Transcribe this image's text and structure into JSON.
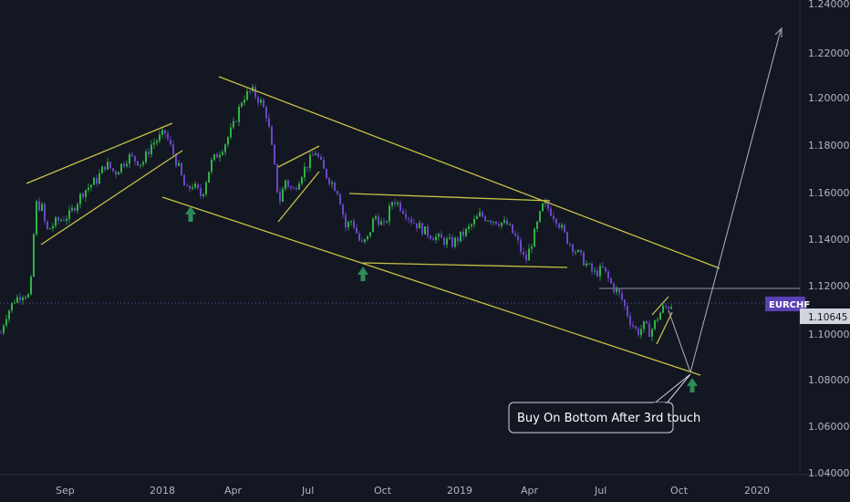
{
  "chart_data": {
    "type": "candlestick",
    "symbol": "EURCHF",
    "last_price": "1.10645",
    "y_ticks": [
      "1.24000",
      "1.22000",
      "1.20000",
      "1.18000",
      "1.16000",
      "1.14000",
      "1.12000",
      "1.10000",
      "1.08000",
      "1.06000",
      "1.04000"
    ],
    "ylim": [
      1.04,
      1.24
    ],
    "x_ticks": [
      "Sep",
      "2018",
      "Apr",
      "Jul",
      "Oct",
      "2019",
      "Apr",
      "Jul",
      "Oct",
      "2020"
    ],
    "price_path": [
      [
        0,
        1.1
      ],
      [
        5,
        1.107
      ],
      [
        15,
        1.114
      ],
      [
        25,
        1.117
      ],
      [
        32,
        1.115
      ],
      [
        38,
        1.155
      ],
      [
        45,
        1.153
      ],
      [
        50,
        1.143
      ],
      [
        60,
        1.147
      ],
      [
        75,
        1.15
      ],
      [
        90,
        1.16
      ],
      [
        105,
        1.165
      ],
      [
        115,
        1.172
      ],
      [
        125,
        1.168
      ],
      [
        140,
        1.175
      ],
      [
        155,
        1.172
      ],
      [
        165,
        1.18
      ],
      [
        180,
        1.185
      ],
      [
        195,
        1.17
      ],
      [
        203,
        1.16
      ],
      [
        210,
        1.163
      ],
      [
        220,
        1.158
      ],
      [
        230,
        1.172
      ],
      [
        245,
        1.18
      ],
      [
        255,
        1.188
      ],
      [
        265,
        1.2
      ],
      [
        275,
        1.203
      ],
      [
        285,
        1.198
      ],
      [
        292,
        1.192
      ],
      [
        300,
        1.17
      ],
      [
        305,
        1.155
      ],
      [
        312,
        1.165
      ],
      [
        320,
        1.16
      ],
      [
        330,
        1.168
      ],
      [
        345,
        1.177
      ],
      [
        355,
        1.168
      ],
      [
        370,
        1.16
      ],
      [
        378,
        1.145
      ],
      [
        385,
        1.148
      ],
      [
        395,
        1.137
      ],
      [
        402,
        1.14
      ],
      [
        410,
        1.15
      ],
      [
        420,
        1.145
      ],
      [
        430,
        1.157
      ],
      [
        440,
        1.153
      ],
      [
        450,
        1.148
      ],
      [
        465,
        1.143
      ],
      [
        480,
        1.14
      ],
      [
        495,
        1.138
      ],
      [
        510,
        1.143
      ],
      [
        525,
        1.15
      ],
      [
        540,
        1.148
      ],
      [
        555,
        1.146
      ],
      [
        565,
        1.14
      ],
      [
        575,
        1.13
      ],
      [
        585,
        1.142
      ],
      [
        595,
        1.155
      ],
      [
        602,
        1.152
      ],
      [
        610,
        1.148
      ],
      [
        620,
        1.14
      ],
      [
        630,
        1.135
      ],
      [
        640,
        1.13
      ],
      [
        650,
        1.125
      ],
      [
        660,
        1.127
      ],
      [
        670,
        1.12
      ],
      [
        680,
        1.115
      ],
      [
        690,
        1.105
      ],
      [
        698,
        1.1
      ],
      [
        705,
        1.103
      ],
      [
        712,
        1.1
      ],
      [
        718,
        1.105
      ],
      [
        725,
        1.11
      ],
      [
        735,
        1.112
      ]
    ],
    "annotation": "Buy On Bottom After 3rd touch",
    "colors": {
      "background": "#131722",
      "up_candle": "#2fb344",
      "down_candle": "#6a46c8",
      "trendline": "#c9c245",
      "arrow": "#2e8b57",
      "axis_text": "#b2b5be",
      "symbol_badge": "#5b3fb5",
      "price_badge": "#d1d4dc"
    }
  }
}
